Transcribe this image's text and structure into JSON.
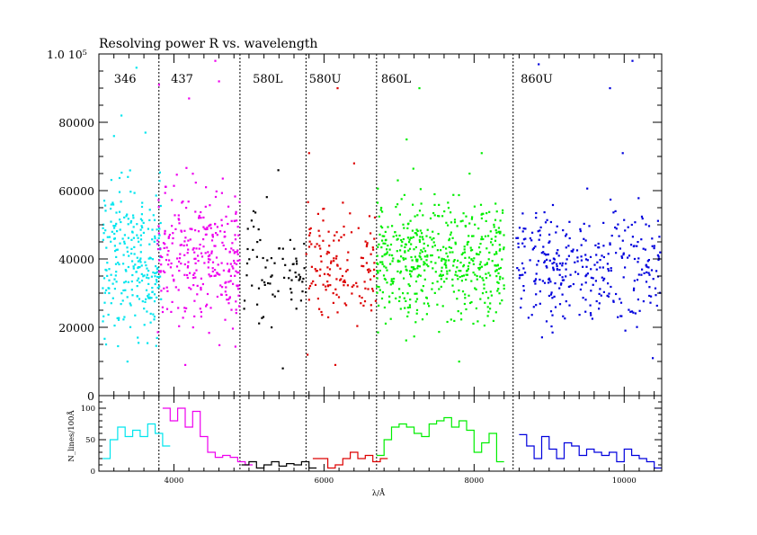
{
  "chart_data": [
    {
      "type": "scatter",
      "title": "Resolving power R vs. wavelength",
      "xlim": [
        3000,
        10500
      ],
      "ylim": [
        0,
        100000
      ],
      "y_ticks": [
        0,
        20000,
        40000,
        60000,
        80000
      ],
      "y_tick_labels": [
        "0",
        "20000",
        "40000",
        "60000",
        "80000"
      ],
      "y_top_label": "1.0 10⁵",
      "grid": false,
      "separators": [
        3800,
        4880,
        5760,
        6700,
        8520
      ],
      "bands": [
        {
          "name": "346",
          "color": "#00e5ee",
          "label_x": 3200,
          "range": [
            3050,
            3830
          ],
          "center": 40000,
          "spread": 11000,
          "n": 260,
          "outliers": [
            [
              3300,
              82000
            ],
            [
              3500,
              96000
            ],
            [
              3200,
              76000
            ],
            [
              3620,
              77000
            ],
            [
              3380,
              10000
            ]
          ]
        },
        {
          "name": "437",
          "color": "#ee00ee",
          "label_x": 3960,
          "range": [
            3780,
            4880
          ],
          "center": 40000,
          "spread": 10000,
          "n": 300,
          "outliers": [
            [
              4550,
              98000
            ],
            [
              4200,
              87000
            ],
            [
              4600,
              92000
            ],
            [
              3800,
              91000
            ],
            [
              4150,
              9000
            ]
          ]
        },
        {
          "name": "580L",
          "color": "#000000",
          "label_x": 5050,
          "range": [
            4890,
            5760
          ],
          "center": 38000,
          "spread": 8000,
          "n": 70,
          "outliers": [
            [
              5390,
              66000
            ],
            [
              5060,
              54000
            ],
            [
              5450,
              8000
            ],
            [
              5300,
              20000
            ]
          ]
        },
        {
          "name": "580U",
          "color": "#dd0000",
          "label_x": 5800,
          "range": [
            5760,
            6690
          ],
          "center": 38000,
          "spread": 7500,
          "n": 140,
          "outliers": [
            [
              6180,
              90000
            ],
            [
              6400,
              68000
            ],
            [
              5800,
              71000
            ],
            [
              6150,
              9000
            ],
            [
              5780,
              12000
            ]
          ]
        },
        {
          "name": "860L",
          "color": "#00ee00",
          "label_x": 6760,
          "range": [
            6700,
            8400
          ],
          "center": 40000,
          "spread": 9000,
          "n": 520,
          "outliers": [
            [
              7270,
              90000
            ],
            [
              7100,
              75000
            ],
            [
              8100,
              71000
            ],
            [
              7800,
              10000
            ]
          ]
        },
        {
          "name": "860U",
          "color": "#0000dd",
          "label_x": 8620,
          "range": [
            8540,
            10480
          ],
          "center": 38000,
          "spread": 8000,
          "n": 330,
          "outliers": [
            [
              8860,
              97000
            ],
            [
              10110,
              98000
            ],
            [
              9810,
              90000
            ],
            [
              9980,
              71000
            ],
            [
              10380,
              11000
            ]
          ]
        }
      ]
    },
    {
      "type": "histogram",
      "ylabel": "N_lines/100Å",
      "xlabel": "λ/Å",
      "xlim": [
        3000,
        10500
      ],
      "ylim": [
        0,
        120
      ],
      "x_ticks": [
        4000,
        6000,
        8000,
        10000
      ],
      "x_tick_labels": [
        "4000",
        "6000",
        "8000",
        "10000"
      ],
      "y_ticks": [
        0,
        50,
        100
      ],
      "y_tick_labels": [
        "0",
        "50",
        "100"
      ],
      "bin_width": 100,
      "series": [
        {
          "name": "346",
          "color": "#00e5ee",
          "start": 3050,
          "values": [
            20,
            50,
            70,
            55,
            65,
            55,
            75,
            60,
            40
          ]
        },
        {
          "name": "437",
          "color": "#ee00ee",
          "start": 3850,
          "values": [
            100,
            80,
            100,
            70,
            95,
            55,
            30,
            22,
            25,
            22,
            15,
            10
          ]
        },
        {
          "name": "580L",
          "color": "#000000",
          "start": 4900,
          "values": [
            10,
            15,
            5,
            10,
            15,
            8,
            12,
            10,
            15,
            5
          ]
        },
        {
          "name": "580U",
          "color": "#dd0000",
          "start": 5850,
          "values": [
            20,
            20,
            5,
            10,
            20,
            30,
            20,
            25,
            15,
            20
          ]
        },
        {
          "name": "860L",
          "color": "#00ee00",
          "start": 6700,
          "values": [
            25,
            50,
            70,
            75,
            70,
            60,
            55,
            75,
            80,
            85,
            70,
            80,
            65,
            30,
            45,
            60,
            15
          ]
        },
        {
          "name": "860U",
          "color": "#0000dd",
          "start": 8600,
          "values": [
            58,
            40,
            20,
            55,
            35,
            20,
            45,
            40,
            25,
            35,
            30,
            25,
            30,
            15,
            35,
            25,
            20,
            15,
            5
          ]
        }
      ]
    }
  ]
}
